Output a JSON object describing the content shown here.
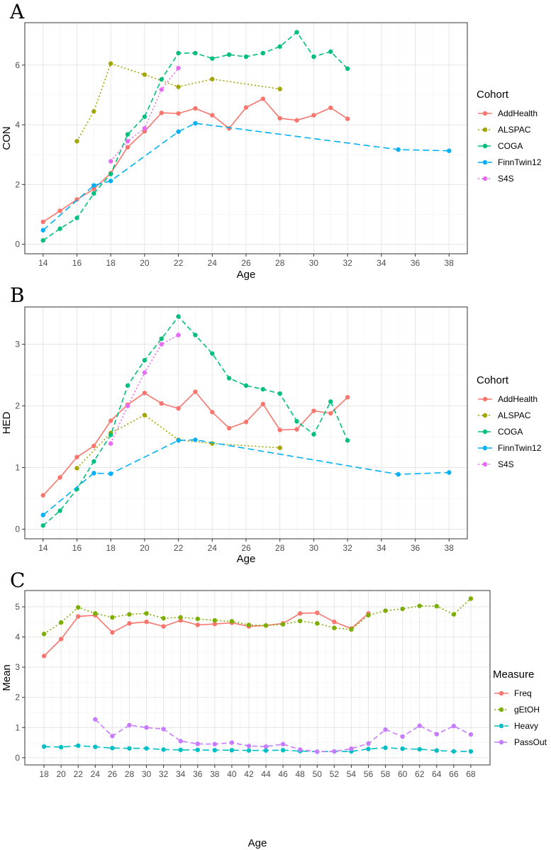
{
  "colors": {
    "AddHealth": "#f8766d",
    "ALSPAC": "#a3a500",
    "COGA": "#00bf7d",
    "FinnTwin12": "#00b0f6",
    "S4S": "#e76bf3",
    "Freq": "#f8766d",
    "gEtOH": "#7cae00",
    "Heavy": "#00bfc4",
    "PassOut": "#c77cff"
  },
  "chart_data": [
    {
      "panel": "A",
      "type": "line",
      "xlabel": "Age",
      "ylabel": "CON",
      "xlim": [
        14,
        38
      ],
      "ylim": [
        0,
        7.1
      ],
      "xticks": [
        14,
        16,
        18,
        20,
        22,
        24,
        26,
        28,
        30,
        32,
        34,
        36,
        38
      ],
      "yticks": [
        0,
        2,
        4,
        6
      ],
      "legend_title": "Cohort",
      "series": [
        {
          "name": "AddHealth",
          "dash": "solid",
          "x": [
            14,
            15,
            16,
            17,
            18,
            19,
            20,
            21,
            22,
            23,
            24,
            25,
            26,
            27,
            28,
            29,
            30,
            31,
            32
          ],
          "y": [
            0.75,
            1.12,
            1.5,
            1.85,
            2.38,
            3.25,
            3.78,
            4.4,
            4.38,
            4.55,
            4.32,
            3.88,
            4.58,
            4.87,
            4.22,
            4.15,
            4.32,
            4.57,
            4.2
          ]
        },
        {
          "name": "ALSPAC",
          "dash": "dotted",
          "x": [
            16,
            17,
            18,
            20,
            22,
            24,
            28
          ],
          "y": [
            3.45,
            4.45,
            6.05,
            5.68,
            5.27,
            5.53,
            5.2
          ]
        },
        {
          "name": "COGA",
          "dash": "dashed",
          "x": [
            14,
            15,
            16,
            17,
            18,
            19,
            20,
            21,
            22,
            23,
            24,
            25,
            26,
            27,
            28,
            29,
            30,
            31,
            32
          ],
          "y": [
            0.13,
            0.52,
            0.88,
            1.7,
            2.35,
            3.68,
            4.27,
            5.52,
            6.4,
            6.4,
            6.22,
            6.35,
            6.28,
            6.4,
            6.62,
            7.1,
            6.28,
            6.45,
            5.88
          ]
        },
        {
          "name": "FinnTwin12",
          "dash": "longdash",
          "x": [
            14,
            17,
            18,
            22,
            23,
            35,
            38
          ],
          "y": [
            0.47,
            1.97,
            2.12,
            3.77,
            4.05,
            3.17,
            3.13
          ]
        },
        {
          "name": "S4S",
          "dash": "dotted",
          "x": [
            18,
            19,
            20,
            21,
            22
          ],
          "y": [
            2.78,
            3.45,
            3.88,
            5.18,
            5.9
          ]
        }
      ]
    },
    {
      "panel": "B",
      "type": "line",
      "xlabel": "Age",
      "ylabel": "HED",
      "xlim": [
        14,
        38
      ],
      "ylim": [
        0,
        3.45
      ],
      "xticks": [
        14,
        16,
        18,
        20,
        22,
        24,
        26,
        28,
        30,
        32,
        34,
        36,
        38
      ],
      "yticks": [
        0,
        1,
        2,
        3
      ],
      "legend_title": "Cohort",
      "series": [
        {
          "name": "AddHealth",
          "dash": "solid",
          "x": [
            14,
            15,
            16,
            17,
            18,
            19,
            20,
            21,
            22,
            23,
            24,
            25,
            26,
            27,
            28,
            29,
            30,
            31,
            32
          ],
          "y": [
            0.55,
            0.84,
            1.17,
            1.35,
            1.76,
            2.02,
            2.21,
            2.04,
            1.96,
            2.23,
            1.9,
            1.64,
            1.74,
            2.03,
            1.61,
            1.62,
            1.92,
            1.88,
            2.14
          ]
        },
        {
          "name": "ALSPAC",
          "dash": "dotted",
          "x": [
            16,
            18,
            20,
            22,
            24,
            28
          ],
          "y": [
            0.99,
            1.56,
            1.85,
            1.45,
            1.39,
            1.32
          ]
        },
        {
          "name": "COGA",
          "dash": "dashed",
          "x": [
            14,
            15,
            16,
            17,
            18,
            19,
            20,
            21,
            22,
            23,
            24,
            25,
            26,
            27,
            28,
            29,
            30,
            31,
            32
          ],
          "y": [
            0.06,
            0.3,
            0.65,
            1.1,
            1.53,
            2.33,
            2.74,
            3.09,
            3.45,
            3.15,
            2.85,
            2.45,
            2.33,
            2.27,
            2.2,
            1.75,
            1.54,
            2.07,
            1.44
          ]
        },
        {
          "name": "FinnTwin12",
          "dash": "longdash",
          "x": [
            14,
            17,
            18,
            22,
            23,
            35,
            38
          ],
          "y": [
            0.23,
            0.91,
            0.9,
            1.44,
            1.45,
            0.89,
            0.92
          ]
        },
        {
          "name": "S4S",
          "dash": "dotted",
          "x": [
            18,
            19,
            20,
            21,
            22
          ],
          "y": [
            1.39,
            2.0,
            2.54,
            3.0,
            3.15
          ]
        }
      ]
    },
    {
      "panel": "C",
      "type": "line",
      "xlabel": "Age",
      "ylabel": "Mean",
      "xlim": [
        18,
        68
      ],
      "ylim": [
        0,
        5.3
      ],
      "xticks": [
        18,
        20,
        22,
        24,
        26,
        28,
        30,
        32,
        34,
        36,
        38,
        40,
        42,
        44,
        46,
        48,
        50,
        52,
        54,
        56,
        58,
        60,
        62,
        64,
        66,
        68
      ],
      "yticks": [
        0,
        1,
        2,
        3,
        4,
        5
      ],
      "legend_title": "Measure",
      "series": [
        {
          "name": "Freq",
          "dash": "solid",
          "x": [
            18,
            20,
            22,
            24,
            26,
            28,
            30,
            32,
            34,
            36,
            38,
            40,
            42,
            44,
            46,
            48,
            50,
            52,
            54,
            56
          ],
          "y": [
            3.37,
            3.93,
            4.68,
            4.72,
            4.15,
            4.45,
            4.5,
            4.35,
            4.55,
            4.4,
            4.43,
            4.47,
            4.35,
            4.38,
            4.45,
            4.78,
            4.8,
            4.5,
            4.28,
            4.78
          ]
        },
        {
          "name": "gEtOH",
          "dash": "dotted",
          "x": [
            18,
            20,
            22,
            24,
            26,
            28,
            30,
            32,
            34,
            36,
            38,
            40,
            42,
            44,
            46,
            48,
            50,
            52,
            54,
            56,
            58,
            60,
            62,
            64,
            66,
            68
          ],
          "y": [
            4.1,
            4.48,
            4.98,
            4.78,
            4.65,
            4.75,
            4.78,
            4.62,
            4.65,
            4.6,
            4.55,
            4.52,
            4.4,
            4.38,
            4.42,
            4.53,
            4.45,
            4.3,
            4.25,
            4.72,
            4.87,
            4.93,
            5.03,
            5.02,
            4.75,
            5.27
          ]
        },
        {
          "name": "Heavy",
          "dash": "longdash",
          "x": [
            18,
            20,
            22,
            24,
            26,
            28,
            30,
            32,
            34,
            36,
            38,
            40,
            42,
            44,
            46,
            48,
            50,
            52,
            54,
            56,
            58,
            60,
            62,
            64,
            66,
            68
          ],
          "y": [
            0.37,
            0.35,
            0.4,
            0.36,
            0.32,
            0.31,
            0.31,
            0.27,
            0.26,
            0.26,
            0.25,
            0.25,
            0.24,
            0.24,
            0.25,
            0.22,
            0.2,
            0.21,
            0.21,
            0.29,
            0.33,
            0.3,
            0.28,
            0.24,
            0.21,
            0.21
          ]
        },
        {
          "name": "PassOut",
          "dash": "dashed",
          "x": [
            24,
            26,
            28,
            30,
            32,
            34,
            36,
            38,
            40,
            42,
            44,
            46,
            48,
            50,
            52,
            54,
            56,
            58,
            60,
            62,
            64,
            66,
            68
          ],
          "y": [
            1.27,
            0.72,
            1.08,
            1.0,
            0.95,
            0.55,
            0.46,
            0.45,
            0.5,
            0.39,
            0.37,
            0.45,
            0.27,
            0.2,
            0.21,
            0.3,
            0.47,
            0.93,
            0.7,
            1.06,
            0.78,
            1.05,
            0.77
          ]
        }
      ]
    }
  ]
}
